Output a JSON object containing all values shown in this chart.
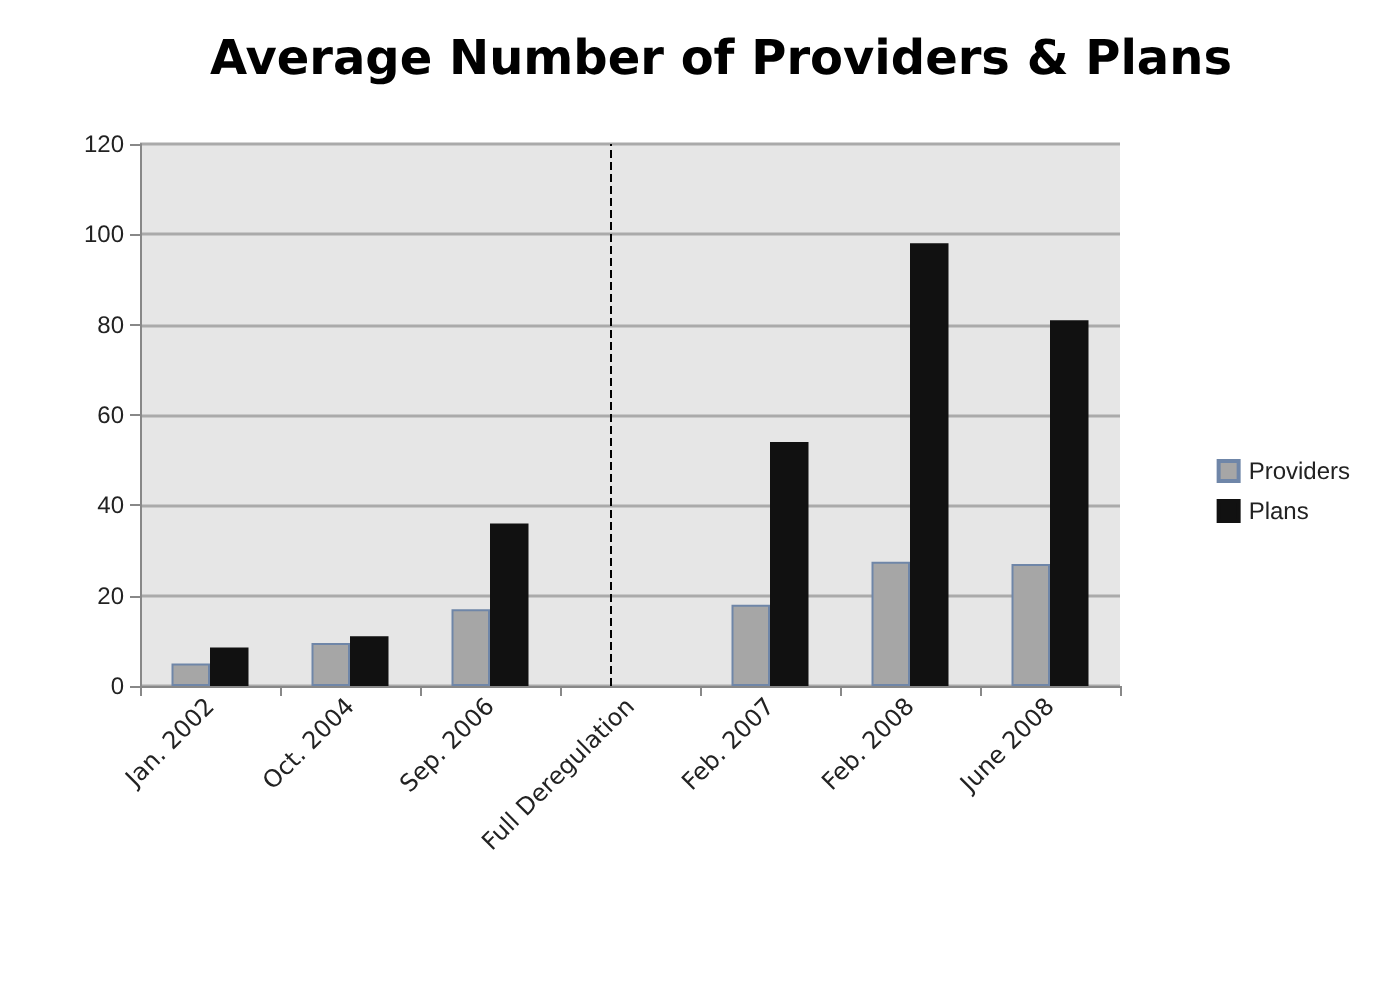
{
  "chart_data": {
    "type": "bar",
    "title": "Average Number of Providers & Plans",
    "categories": [
      "Jan. 2002",
      "Oct. 2004",
      "Sep. 2006",
      "Full Deregulation",
      "Feb. 2007",
      "Feb. 2008",
      "June 2008"
    ],
    "series": [
      {
        "name": "Providers",
        "color": "#a6a6a6",
        "values": [
          5,
          9.5,
          17,
          null,
          18,
          27.5,
          27
        ]
      },
      {
        "name": "Plans",
        "color": "#111111",
        "values": [
          8.5,
          11,
          36,
          null,
          54,
          98,
          81
        ]
      }
    ],
    "ylim": [
      0,
      120
    ],
    "yticks": [
      0,
      20,
      40,
      60,
      80,
      100,
      120
    ],
    "grid": "y",
    "legend": "right",
    "ref_lines": [
      {
        "axis": "x",
        "value": "Full Deregulation",
        "color": "#000000",
        "line_style": "dashed"
      }
    ]
  }
}
